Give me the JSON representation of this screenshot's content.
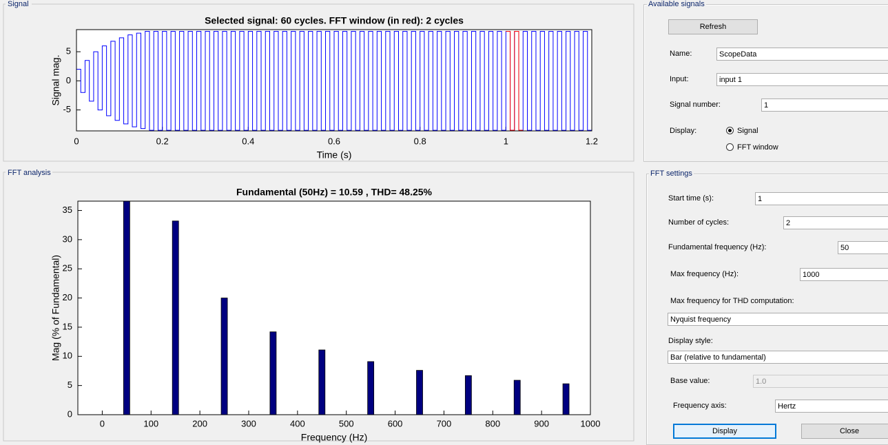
{
  "chart_data": [
    {
      "type": "line",
      "title": "Selected signal: 60 cycles. FFT window (in red): 2 cycles",
      "xlabel": "Time (s)",
      "ylabel": "Signal mag.",
      "xlim": [
        0,
        1.2
      ],
      "ylim": [
        -8.6,
        8.8
      ],
      "xticks": [
        0,
        0.2,
        0.4,
        0.6,
        0.8,
        1,
        1.2
      ],
      "yticks": [
        -5,
        0,
        5
      ],
      "series": [
        {
          "color": "#0000ff",
          "x": [
            0,
            0.01,
            0.01,
            0.02,
            0.02,
            0.03,
            0.03,
            0.04,
            0.04,
            0.05,
            0.05,
            0.06,
            0.06,
            0.07,
            0.07,
            0.08,
            0.08,
            0.09,
            0.09,
            0.1,
            0.1,
            0.11,
            0.11,
            0.12,
            0.12,
            0.13,
            0.13,
            0.14,
            0.14,
            0.15,
            0.15,
            0.16,
            0.16,
            0.17,
            0.17,
            0.18,
            0.18,
            0.19,
            0.19,
            0.2,
            0.2,
            0.21,
            0.21,
            0.22,
            0.22,
            0.23,
            0.23,
            0.24,
            0.24,
            0.25,
            0.25,
            0.26,
            0.26,
            0.27,
            0.27,
            0.28,
            0.28,
            0.29,
            0.29,
            0.3,
            0.3,
            0.31,
            0.31,
            0.32,
            0.32,
            0.33,
            0.33,
            0.34,
            0.34,
            0.35,
            0.35,
            0.36,
            0.36,
            0.37,
            0.37,
            0.38,
            0.38,
            0.39,
            0.39,
            0.4,
            0.4,
            0.41,
            0.41,
            0.42,
            0.42,
            0.43,
            0.43,
            0.44,
            0.44,
            0.45,
            0.45,
            0.46,
            0.46,
            0.47,
            0.47,
            0.48,
            0.48,
            0.49,
            0.49,
            0.5,
            0.5,
            0.51,
            0.51,
            0.52,
            0.52,
            0.53,
            0.53,
            0.54,
            0.54,
            0.55,
            0.55,
            0.56,
            0.56,
            0.57,
            0.57,
            0.58,
            0.58,
            0.59,
            0.59,
            0.6,
            0.6,
            0.61,
            0.61,
            0.62,
            0.62,
            0.63,
            0.63,
            0.64,
            0.64,
            0.65,
            0.65,
            0.66,
            0.66,
            0.67,
            0.67,
            0.68,
            0.68,
            0.69,
            0.69,
            0.7,
            0.7,
            0.71,
            0.71,
            0.72,
            0.72,
            0.73,
            0.73,
            0.74,
            0.74,
            0.75,
            0.75,
            0.76,
            0.76,
            0.77,
            0.77,
            0.78,
            0.78,
            0.79,
            0.79,
            0.8,
            0.8,
            0.81,
            0.81,
            0.82,
            0.82,
            0.83,
            0.83,
            0.84,
            0.84,
            0.85,
            0.85,
            0.86,
            0.86,
            0.87,
            0.87,
            0.88,
            0.88,
            0.89,
            0.89,
            0.9,
            0.9,
            0.91,
            0.91,
            0.92,
            0.92,
            0.93,
            0.93,
            0.94,
            0.94,
            0.95,
            0.95,
            0.96,
            0.96,
            0.97,
            0.97,
            0.98,
            0.98,
            0.99,
            0.99,
            1,
            1,
            1.01,
            1.01,
            1.02,
            1.02,
            1.03,
            1.03,
            1.04,
            1.04,
            1.05,
            1.05,
            1.06,
            1.06,
            1.07,
            1.07,
            1.08,
            1.08,
            1.09,
            1.09,
            1.1,
            1.1,
            1.11,
            1.11,
            1.12,
            1.12,
            1.13,
            1.13,
            1.14,
            1.14,
            1.15,
            1.15,
            1.16,
            1.16,
            1.17,
            1.17,
            1.18,
            1.18,
            1.19,
            1.19,
            1.2
          ],
          "values": [
            2,
            2,
            -2,
            -2,
            3.5,
            3.5,
            -3.5,
            -3.5,
            5,
            5,
            -5,
            -5,
            6,
            6,
            -6,
            -6,
            6.8,
            6.8,
            -6.8,
            -6.8,
            7.4,
            7.4,
            -7.4,
            -7.4,
            7.9,
            7.9,
            -7.9,
            -7.9,
            8.2,
            8.2,
            -8.2,
            -8.2,
            8.5,
            8.5,
            -8.5,
            -8.5,
            8.5,
            8.5,
            -8.5,
            -8.5,
            8.5,
            8.5,
            -8.5,
            -8.5,
            8.5,
            8.5,
            -8.5,
            -8.5,
            8.5,
            8.5,
            -8.5,
            -8.5,
            8.5,
            8.5,
            -8.5,
            -8.5,
            8.5,
            8.5,
            -8.5,
            -8.5,
            8.5,
            8.5,
            -8.5,
            -8.5,
            8.5,
            8.5,
            -8.5,
            -8.5,
            8.5,
            8.5,
            -8.5,
            -8.5,
            8.5,
            8.5,
            -8.5,
            -8.5,
            8.5,
            8.5,
            -8.5,
            -8.5,
            8.5,
            8.5,
            -8.5,
            -8.5,
            8.5,
            8.5,
            -8.5,
            -8.5,
            8.5,
            8.5,
            -8.5,
            -8.5,
            8.5,
            8.5,
            -8.5,
            -8.5,
            8.5,
            8.5,
            -8.5,
            -8.5,
            8.5,
            8.5,
            -8.5,
            -8.5,
            8.5,
            8.5,
            -8.5,
            -8.5,
            8.5,
            8.5,
            -8.5,
            -8.5,
            8.5,
            8.5,
            -8.5,
            -8.5,
            8.5,
            8.5,
            -8.5,
            -8.5,
            8.5,
            8.5,
            -8.5,
            -8.5,
            8.5,
            8.5,
            -8.5,
            -8.5,
            8.5,
            8.5,
            -8.5,
            -8.5,
            8.5,
            8.5,
            -8.5,
            -8.5,
            8.5,
            8.5,
            -8.5,
            -8.5,
            8.5,
            8.5,
            -8.5,
            -8.5,
            8.5,
            8.5,
            -8.5,
            -8.5,
            8.5,
            8.5,
            -8.5,
            -8.5,
            8.5,
            8.5,
            -8.5,
            -8.5,
            8.5,
            8.5,
            -8.5,
            -8.5,
            8.5,
            8.5,
            -8.5,
            -8.5,
            8.5,
            8.5,
            -8.5,
            -8.5,
            8.5,
            8.5,
            -8.5,
            -8.5,
            8.5,
            8.5,
            -8.5,
            -8.5,
            8.5,
            8.5,
            -8.5,
            -8.5,
            8.5,
            8.5,
            -8.5,
            -8.5,
            8.5,
            8.5,
            -8.5,
            -8.5,
            8.5,
            8.5,
            -8.5,
            -8.5,
            8.5,
            8.5,
            -8.5,
            -8.5,
            8.5,
            8.5,
            -8.5,
            -8.5,
            8.5,
            8.5,
            -8.5,
            -8.5,
            8.5,
            8.5,
            -8.5,
            -8.5,
            8.5,
            8.5,
            -8.5,
            -8.5,
            8.5,
            8.5,
            -8.5,
            -8.5,
            8.5,
            8.5,
            -8.5,
            -8.5,
            8.5,
            8.5,
            -8.5,
            -8.5,
            8.5,
            8.5,
            -8.5,
            -8.5,
            8.5,
            8.5,
            -8.5,
            -8.5,
            8.5,
            8.5,
            -8.5,
            -8.5,
            8.5,
            8.5,
            -8.5,
            -8.5
          ]
        },
        {
          "color": "#ff0000",
          "x": [
            1,
            1.01,
            1.01,
            1.02,
            1.02,
            1.03,
            1.03,
            1.04
          ],
          "values": [
            8.5,
            8.5,
            -8.5,
            -8.5,
            8.5,
            8.5,
            -8.5,
            -8.5
          ]
        }
      ]
    },
    {
      "type": "bar",
      "title": "Fundamental (50Hz) = 10.59 , THD= 48.25%",
      "xlabel": "Frequency (Hz)",
      "ylabel": "Mag (% of Fundamental)",
      "xlim": [
        -50,
        1000
      ],
      "ylim": [
        0,
        36.6
      ],
      "xticks": [
        0,
        100,
        200,
        300,
        400,
        500,
        600,
        700,
        800,
        900,
        1000
      ],
      "yticks": [
        0,
        5,
        10,
        15,
        20,
        25,
        30,
        35
      ],
      "color": "#000080",
      "x": [
        50,
        150,
        250,
        350,
        450,
        550,
        650,
        750,
        850,
        950
      ],
      "values": [
        36.6,
        33.2,
        20,
        14.2,
        11.1,
        9.1,
        7.6,
        6.7,
        5.9,
        5.3
      ]
    }
  ],
  "ui": {
    "signal_panel": "Signal",
    "fft_panel": "FFT analysis",
    "available_signals": {
      "title": "Available signals",
      "refresh": "Refresh",
      "name_label": "Name:",
      "name": "ScopeData",
      "input_label": "Input:",
      "input": "input 1",
      "signal_number_label": "Signal number:",
      "signal_number": "1",
      "display_label": "Display:",
      "display_options": [
        "Signal",
        "FFT window"
      ]
    },
    "fft_settings": {
      "title": "FFT settings",
      "start_time_label": "Start time (s):",
      "start_time": "1",
      "cycles_label": "Number of cycles:",
      "cycles": "2",
      "fundamental_label": "Fundamental frequency (Hz):",
      "fundamental": "50",
      "max_freq_label": "Max frequency (Hz):",
      "max_freq": "1000",
      "thd_label": "Max frequency for THD computation:",
      "thd": "Nyquist frequency",
      "style_label": "Display style:",
      "style": "Bar (relative to fundamental)",
      "base_label": "Base value:",
      "base": "1.0",
      "axis_label": "Frequency axis:",
      "axis": "Hertz",
      "display_button": "Display",
      "close_button": "Close"
    }
  }
}
